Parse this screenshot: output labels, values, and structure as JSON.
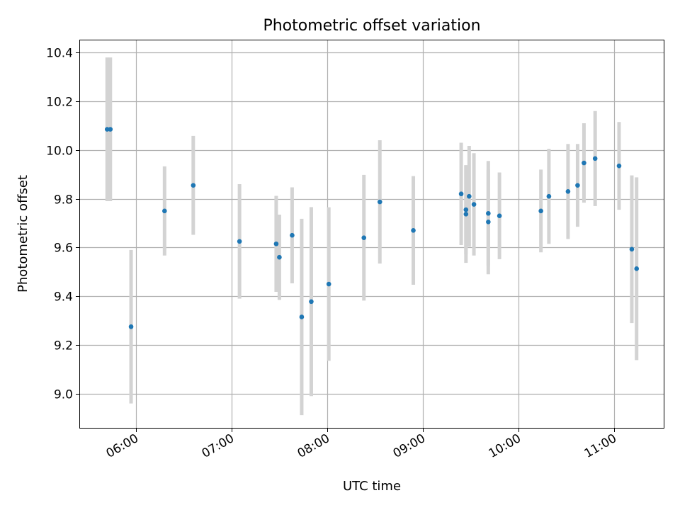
{
  "chart_data": {
    "type": "scatter",
    "title": "Photometric offset variation",
    "xlabel": "UTC time",
    "ylabel": "Photometric offset",
    "x_tick_labels": [
      "06:00",
      "07:00",
      "08:00",
      "09:00",
      "10:00",
      "11:00"
    ],
    "y_ticks": [
      9.0,
      9.2,
      9.4,
      9.6,
      9.8,
      10.0,
      10.2,
      10.4
    ],
    "xlim": [
      "05:25",
      "11:31"
    ],
    "ylim": [
      8.86,
      10.45
    ],
    "grid": true,
    "colors": {
      "points": "#1f77b4",
      "error_bars": "#d3d3d3",
      "grid": "#b0b0b0"
    },
    "points": [
      {
        "x": "05:42",
        "y": 10.085,
        "err": 0.295
      },
      {
        "x": "05:44",
        "y": 10.085,
        "err": 0.295
      },
      {
        "x": "05:57",
        "y": 9.275,
        "err": 0.315
      },
      {
        "x": "06:18",
        "y": 9.75,
        "err": 0.183
      },
      {
        "x": "06:36",
        "y": 9.855,
        "err": 0.203
      },
      {
        "x": "07:05",
        "y": 9.625,
        "err": 0.235
      },
      {
        "x": "07:28",
        "y": 9.615,
        "err": 0.197
      },
      {
        "x": "07:30",
        "y": 9.56,
        "err": 0.175
      },
      {
        "x": "07:38",
        "y": 9.65,
        "err": 0.197
      },
      {
        "x": "07:44",
        "y": 9.315,
        "err": 0.403
      },
      {
        "x": "07:50",
        "y": 9.378,
        "err": 0.388
      },
      {
        "x": "08:01",
        "y": 9.45,
        "err": 0.315
      },
      {
        "x": "08:23",
        "y": 9.64,
        "err": 0.258
      },
      {
        "x": "08:33",
        "y": 9.787,
        "err": 0.253
      },
      {
        "x": "08:54",
        "y": 9.67,
        "err": 0.223
      },
      {
        "x": "09:24",
        "y": 9.82,
        "err": 0.21
      },
      {
        "x": "09:27",
        "y": 9.737,
        "err": 0.2
      },
      {
        "x": "09:27",
        "y": 9.755,
        "err": 0.183
      },
      {
        "x": "09:29",
        "y": 9.81,
        "err": 0.207
      },
      {
        "x": "09:32",
        "y": 9.777,
        "err": 0.21
      },
      {
        "x": "09:41",
        "y": 9.74,
        "err": 0.215
      },
      {
        "x": "09:41",
        "y": 9.705,
        "err": 0.215
      },
      {
        "x": "09:48",
        "y": 9.73,
        "err": 0.178
      },
      {
        "x": "10:14",
        "y": 9.75,
        "err": 0.17
      },
      {
        "x": "10:19",
        "y": 9.81,
        "err": 0.195
      },
      {
        "x": "10:31",
        "y": 9.83,
        "err": 0.195
      },
      {
        "x": "10:37",
        "y": 9.855,
        "err": 0.17
      },
      {
        "x": "10:41",
        "y": 9.947,
        "err": 0.163
      },
      {
        "x": "10:48",
        "y": 9.965,
        "err": 0.195
      },
      {
        "x": "11:03",
        "y": 9.935,
        "err": 0.18
      },
      {
        "x": "11:11",
        "y": 9.593,
        "err": 0.303
      },
      {
        "x": "11:14",
        "y": 9.513,
        "err": 0.375
      }
    ]
  }
}
